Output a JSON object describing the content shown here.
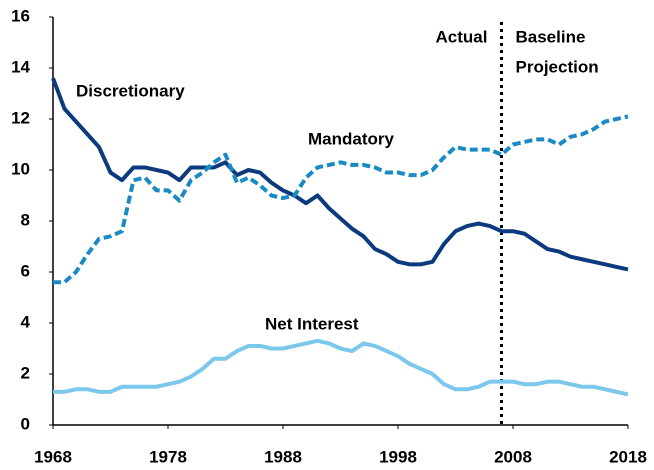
{
  "chart_data": {
    "type": "line",
    "x": [
      1968,
      1969,
      1970,
      1971,
      1972,
      1973,
      1974,
      1975,
      1976,
      1977,
      1978,
      1979,
      1980,
      1981,
      1982,
      1983,
      1984,
      1985,
      1986,
      1987,
      1988,
      1989,
      1990,
      1991,
      1992,
      1993,
      1994,
      1995,
      1996,
      1997,
      1998,
      1999,
      2000,
      2001,
      2002,
      2003,
      2004,
      2005,
      2006,
      2007,
      2008,
      2009,
      2010,
      2011,
      2012,
      2013,
      2014,
      2015,
      2016,
      2017,
      2018
    ],
    "series": [
      {
        "name": "Discretionary",
        "color": "#0b3a7e",
        "dashed": false,
        "values": [
          13.6,
          12.4,
          11.9,
          11.4,
          10.9,
          9.9,
          9.6,
          10.1,
          10.1,
          10.0,
          9.9,
          9.6,
          10.1,
          10.1,
          10.1,
          10.3,
          9.8,
          10.0,
          9.9,
          9.5,
          9.2,
          9.0,
          8.7,
          9.0,
          8.5,
          8.1,
          7.7,
          7.4,
          6.9,
          6.7,
          6.4,
          6.3,
          6.3,
          6.4,
          7.1,
          7.6,
          7.8,
          7.9,
          7.8,
          7.6,
          7.6,
          7.5,
          7.2,
          6.9,
          6.8,
          6.6,
          6.5,
          6.4,
          6.3,
          6.2,
          6.1
        ]
      },
      {
        "name": "Mandatory",
        "color": "#1a8ac6",
        "dashed": true,
        "values": [
          5.6,
          5.6,
          6.0,
          6.7,
          7.3,
          7.4,
          7.6,
          9.6,
          9.7,
          9.2,
          9.2,
          8.8,
          9.6,
          9.9,
          10.3,
          10.6,
          9.5,
          9.7,
          9.4,
          9.0,
          8.9,
          9.0,
          9.7,
          10.1,
          10.2,
          10.3,
          10.2,
          10.2,
          10.1,
          9.9,
          9.9,
          9.8,
          9.8,
          10.0,
          10.5,
          10.9,
          10.8,
          10.8,
          10.8,
          10.6,
          11.0,
          11.1,
          11.2,
          11.2,
          11.0,
          11.3,
          11.4,
          11.6,
          11.9,
          12.0,
          12.1
        ]
      },
      {
        "name": "Net Interest",
        "color": "#7cc8ec",
        "dashed": false,
        "values": [
          1.3,
          1.3,
          1.4,
          1.4,
          1.3,
          1.3,
          1.5,
          1.5,
          1.5,
          1.5,
          1.6,
          1.7,
          1.9,
          2.2,
          2.6,
          2.6,
          2.9,
          3.1,
          3.1,
          3.0,
          3.0,
          3.1,
          3.2,
          3.3,
          3.2,
          3.0,
          2.9,
          3.2,
          3.1,
          2.9,
          2.7,
          2.4,
          2.2,
          2.0,
          1.6,
          1.4,
          1.4,
          1.5,
          1.7,
          1.7,
          1.7,
          1.6,
          1.6,
          1.7,
          1.7,
          1.6,
          1.5,
          1.5,
          1.4,
          1.3,
          1.2
        ]
      }
    ],
    "xlim": [
      1968,
      2018
    ],
    "xticks": [
      1968,
      1978,
      1988,
      1998,
      2008,
      2018
    ],
    "ylim": [
      0,
      16
    ],
    "yticks": [
      0,
      2,
      4,
      6,
      8,
      10,
      12,
      14,
      16
    ],
    "divider_x": 2007,
    "annotations": {
      "left": "Actual",
      "right": [
        "Baseline",
        "Projection"
      ]
    }
  }
}
